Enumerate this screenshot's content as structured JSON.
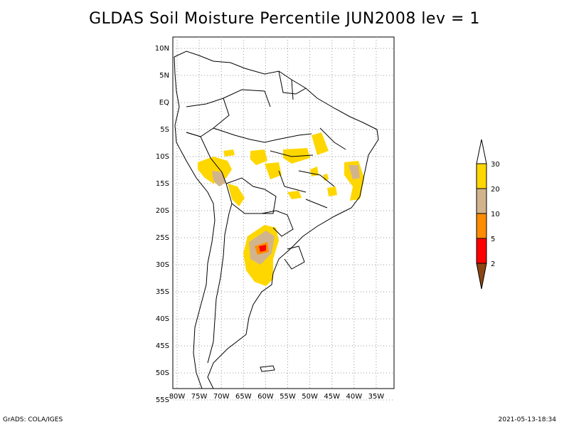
{
  "title": "GLDAS Soil Moisture Percentile JUN2008 lev = 1",
  "footer": {
    "left": "GrADS: COLA/IGES",
    "right": "2021-05-13-18:34"
  },
  "map": {
    "lat_labels": [
      "10N",
      "5N",
      "EQ",
      "5S",
      "10S",
      "15S",
      "20S",
      "25S",
      "30S",
      "35S",
      "40S",
      "45S",
      "50S",
      "55S"
    ],
    "lon_labels": [
      "80W",
      "75W",
      "70W",
      "65W",
      "60W",
      "55W",
      "50W",
      "45W",
      "40W",
      "35W"
    ],
    "lon_range": [
      -80,
      -30
    ],
    "lat_range": [
      -55,
      10
    ]
  },
  "legend": {
    "labels": [
      "30",
      "20",
      "10",
      "5",
      "2"
    ],
    "colors": {
      "above30": "#ffffff",
      "b20_30": "#ffd700",
      "b10_20": "#d2b48c",
      "b5_10": "#ff8c00",
      "b2_5": "#ff0000",
      "below2": "#8b4513"
    }
  }
}
